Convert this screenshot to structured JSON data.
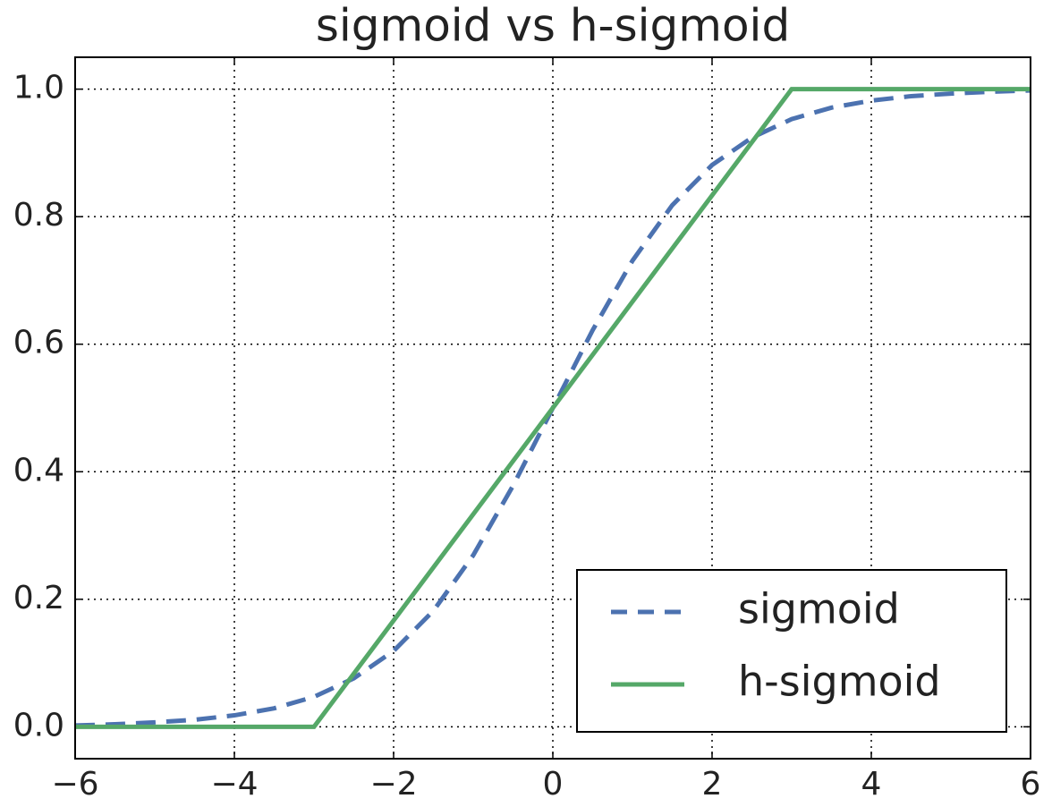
{
  "chart_data": {
    "type": "line",
    "title": "sigmoid vs h-sigmoid",
    "series": [
      {
        "name": "sigmoid",
        "color": "#4c72b0",
        "linestyle": "dashed",
        "x": [
          -6,
          -5.5,
          -5,
          -4.5,
          -4,
          -3.5,
          -3,
          -2.5,
          -2,
          -1.5,
          -1,
          -0.5,
          0,
          0.5,
          1,
          1.5,
          2,
          2.5,
          3,
          3.5,
          4,
          4.5,
          5,
          5.5,
          6
        ],
        "values": [
          0.002,
          0.004,
          0.007,
          0.011,
          0.018,
          0.029,
          0.047,
          0.076,
          0.119,
          0.182,
          0.269,
          0.378,
          0.5,
          0.622,
          0.731,
          0.818,
          0.881,
          0.924,
          0.953,
          0.971,
          0.982,
          0.989,
          0.993,
          0.996,
          0.998
        ]
      },
      {
        "name": "h-sigmoid",
        "color": "#55a868",
        "linestyle": "solid",
        "x": [
          -6,
          -3,
          3,
          6
        ],
        "values": [
          0,
          0,
          1,
          1
        ]
      }
    ],
    "xlim": [
      -6,
      6
    ],
    "xticks": [
      {
        "value": -6,
        "label": "−6"
      },
      {
        "value": -4,
        "label": "−4"
      },
      {
        "value": -2,
        "label": "−2"
      },
      0,
      2,
      4,
      6
    ],
    "ylim": [
      -0.05,
      1.05
    ],
    "yticks": [
      {
        "value": 0,
        "label": "0.0"
      },
      0.2,
      0.4,
      0.6,
      0.8,
      {
        "value": 1,
        "label": "1.0"
      }
    ],
    "grid": true,
    "legend": "lower right"
  }
}
